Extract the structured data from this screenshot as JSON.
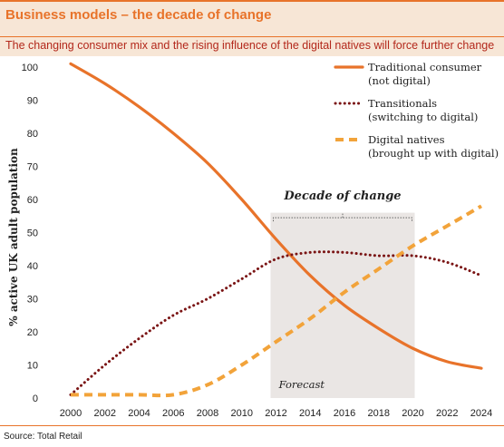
{
  "header": {
    "title": "Business models – the decade of change",
    "subtitle": "The changing consumer mix and the rising influence of the digital natives will force further change"
  },
  "footer": {
    "source": "Source: Total Retail"
  },
  "colors": {
    "accent": "#e8732a",
    "dark_red": "#7a1414",
    "light_orange": "#f2a33a",
    "band": "#eae6e4"
  },
  "chart_data": {
    "type": "line",
    "xlabel": "",
    "ylabel": "% active UK adult population",
    "ylim": [
      0,
      100
    ],
    "xlim": [
      2000,
      2024
    ],
    "grid": false,
    "legend_position": "top-right",
    "x_ticks": [
      2000,
      2002,
      2004,
      2006,
      2008,
      2010,
      2012,
      2014,
      2016,
      2018,
      2020,
      2022,
      2024
    ],
    "y_ticks": [
      0,
      10,
      20,
      30,
      40,
      50,
      60,
      70,
      80,
      90,
      100
    ],
    "series": [
      {
        "name": "Traditional consumer\n(not digital)",
        "style": "solid",
        "color": "#e8732a",
        "x": [
          2000,
          2002,
          2004,
          2006,
          2008,
          2010,
          2012,
          2014,
          2016,
          2018,
          2020,
          2022,
          2024
        ],
        "y": [
          101,
          95,
          88,
          80,
          71,
          60,
          48,
          37,
          28,
          21,
          15,
          11,
          9
        ]
      },
      {
        "name": "Transitionals\n(switching to digital)",
        "style": "dotted",
        "color": "#7a1414",
        "x": [
          2000,
          2002,
          2004,
          2006,
          2008,
          2010,
          2012,
          2014,
          2016,
          2018,
          2020,
          2022,
          2024
        ],
        "y": [
          1,
          10,
          18,
          25,
          30,
          36,
          42,
          44,
          44,
          43,
          43,
          41,
          37
        ]
      },
      {
        "name": "Digital natives\n(brought up with digital)",
        "style": "dashed",
        "color": "#f2a33a",
        "x": [
          2000,
          2002,
          2004,
          2006,
          2008,
          2010,
          2012,
          2014,
          2016,
          2018,
          2020,
          2022,
          2024
        ],
        "y": [
          1,
          1,
          1,
          1,
          4,
          10,
          17,
          24,
          32,
          39,
          46,
          52,
          58
        ]
      }
    ],
    "annotations": {
      "band_label": "Decade of change",
      "band_range": [
        2012,
        2020
      ],
      "forecast_label": "Forecast"
    }
  }
}
